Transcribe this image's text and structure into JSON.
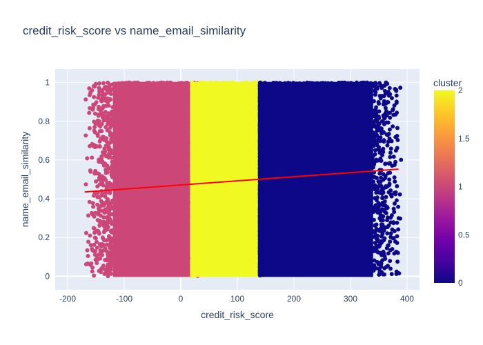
{
  "chart_data": {
    "type": "scatter",
    "title": "credit_risk_score vs name_email_similarity",
    "xlabel": "credit_risk_score",
    "ylabel": "name_email_similarity",
    "xlim": [
      -222,
      422
    ],
    "ylim": [
      -0.07,
      1.07
    ],
    "x_ticks": [
      -200,
      -100,
      0,
      100,
      200,
      300,
      400
    ],
    "y_ticks": [
      0,
      0.2,
      0.4,
      0.6,
      0.8,
      1
    ],
    "grid": true,
    "colorbar": {
      "title": "cluster",
      "range": [
        0,
        2
      ],
      "ticks": [
        0,
        0.5,
        1,
        1.5,
        2
      ],
      "colorscale": [
        "#0d0887",
        "#46039f",
        "#7201a8",
        "#9c179e",
        "#bd3786",
        "#d8576b",
        "#ed7953",
        "#fb9f3a",
        "#fdca26",
        "#f0f921"
      ]
    },
    "series": [
      {
        "cluster": 1,
        "color": "#cc4778",
        "x_range": [
          -170,
          30
        ],
        "x_density_core": [
          -120,
          30
        ],
        "y_range": [
          0,
          1
        ]
      },
      {
        "cluster": 2,
        "color": "#f0f921",
        "x_range": [
          20,
          145
        ],
        "y_range": [
          0,
          1
        ]
      },
      {
        "cluster": 0,
        "color": "#0d0887",
        "x_range": [
          140,
          390
        ],
        "x_density_core": [
          140,
          340
        ],
        "y_range": [
          0,
          1
        ]
      }
    ],
    "trendline": {
      "color": "#ff0000",
      "points": [
        [
          -170,
          0.435
        ],
        [
          385,
          0.553
        ]
      ]
    }
  }
}
